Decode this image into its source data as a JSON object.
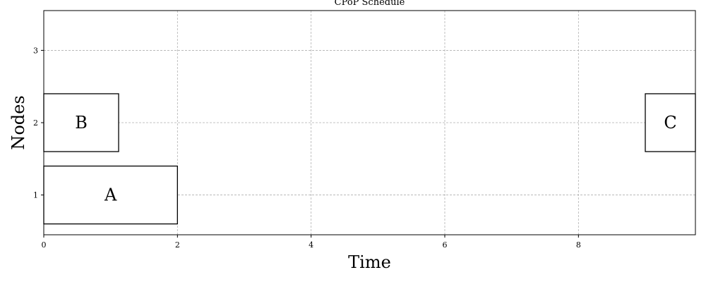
{
  "chart_data": {
    "type": "gantt",
    "title": "CPoP Schedule",
    "xlabel": "Time",
    "ylabel": "Nodes",
    "xlim": [
      0,
      9.75
    ],
    "ylim": [
      0.45,
      3.55
    ],
    "xticks": [
      0,
      2,
      4,
      6,
      8
    ],
    "yticks": [
      1,
      2,
      3
    ],
    "grid": true,
    "tasks": [
      {
        "name": "A",
        "node": 1,
        "start": 0,
        "end": 2.0
      },
      {
        "name": "B",
        "node": 2,
        "start": 0,
        "end": 1.12
      },
      {
        "name": "C",
        "node": 2,
        "start": 9.0,
        "end": 9.75
      }
    ]
  }
}
